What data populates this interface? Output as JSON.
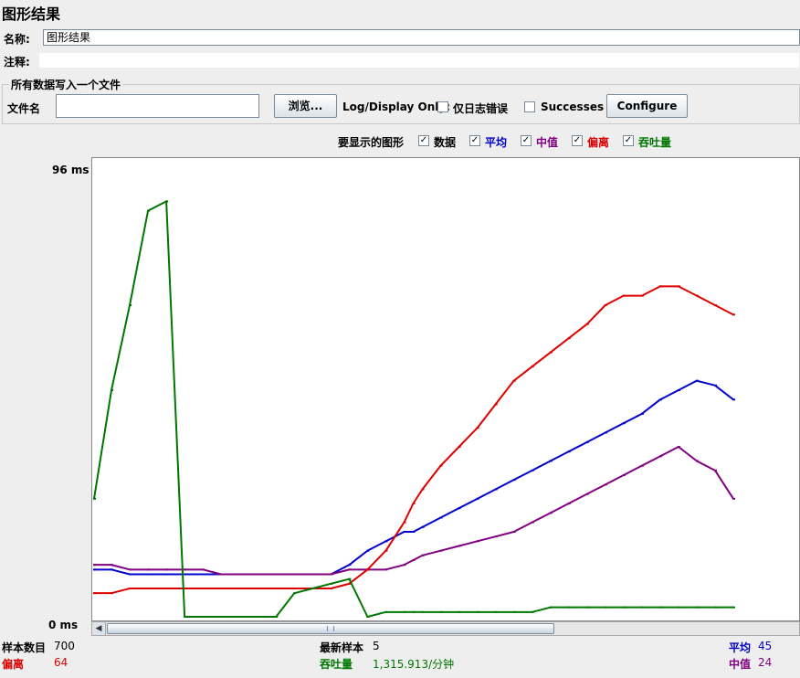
{
  "window": {
    "title": "图形结果"
  },
  "name": {
    "label": "名称:",
    "value": "图形结果"
  },
  "comment": {
    "label": "注释:"
  },
  "file_group": {
    "title": "所有数据写入一个文件",
    "filename_label": "文件名",
    "filename_value": "",
    "browse_label": "浏览...",
    "log_display_label": "Log/Display Only:",
    "errors_only_label": "仅日志错误",
    "successes_label": "Successes",
    "configure_label": "Configure"
  },
  "graph_options": {
    "label": "要显示的图形",
    "items": [
      {
        "label": "数据",
        "color": "#000000",
        "checked": true
      },
      {
        "label": "平均",
        "color": "#0000cc",
        "checked": true
      },
      {
        "label": "中值",
        "color": "#800080",
        "checked": true
      },
      {
        "label": "偏离",
        "color": "#dd0000",
        "checked": true
      },
      {
        "label": "吞吐量",
        "color": "#007700",
        "checked": true
      }
    ]
  },
  "chart_data": {
    "type": "line",
    "ylabel_top": "96 ms",
    "ylabel_bottom": "0 ms",
    "ylim": [
      0,
      96
    ],
    "x": [
      1,
      20,
      40,
      60,
      80,
      100,
      120,
      140,
      160,
      180,
      200,
      220,
      240,
      260,
      280,
      300,
      320,
      340,
      350,
      360,
      380,
      400,
      420,
      440,
      460,
      480,
      500,
      520,
      540,
      560,
      580,
      600,
      620,
      640,
      660,
      680,
      700
    ],
    "series": [
      {
        "name": "平均",
        "color": "#0000cc",
        "values": [
          10,
          10,
          9,
          9,
          9,
          9,
          9,
          9,
          9,
          9,
          9,
          9,
          9,
          9,
          11,
          14,
          16,
          18,
          18,
          19,
          21,
          23,
          25,
          27,
          29,
          31,
          33,
          35,
          37,
          39,
          41,
          43,
          46,
          48,
          50,
          49,
          46
        ]
      },
      {
        "name": "中值",
        "color": "#800080",
        "values": [
          11,
          11,
          10,
          10,
          10,
          10,
          10,
          9,
          9,
          9,
          9,
          9,
          9,
          9,
          10,
          10,
          10,
          11,
          12,
          13,
          14,
          15,
          16,
          17,
          18,
          20,
          22,
          24,
          26,
          28,
          30,
          32,
          34,
          36,
          33,
          31,
          25
        ]
      },
      {
        "name": "偏离",
        "color": "#dd0000",
        "values": [
          5,
          5,
          6,
          6,
          6,
          6,
          6,
          6,
          6,
          6,
          6,
          6,
          6,
          6,
          7,
          10,
          14,
          20,
          24,
          27,
          32,
          36,
          40,
          45,
          50,
          53,
          56,
          59,
          62,
          66,
          68,
          68,
          70,
          70,
          68,
          66,
          64
        ]
      },
      {
        "name": "吞吐量",
        "color": "#007700",
        "values": [
          25,
          48,
          66,
          86,
          88,
          0,
          0,
          0,
          0,
          0,
          0,
          5,
          6,
          7,
          8,
          0,
          1,
          1,
          1,
          1,
          1,
          1,
          1,
          1,
          1,
          1,
          2,
          2,
          2,
          2,
          2,
          2,
          2,
          2,
          2,
          2,
          2
        ]
      }
    ]
  },
  "stats": {
    "samples_label": "样本数目",
    "samples_value": "700",
    "latest_label": "最新样本",
    "latest_value": "5",
    "average_label": "平均",
    "average_value": "45",
    "deviation_label": "偏离",
    "deviation_value": "64",
    "throughput_label": "吞吐量",
    "throughput_value": "1,315.913/分钟",
    "median_label": "中值",
    "median_value": "24"
  },
  "colors": {
    "average": "#0000cc",
    "median": "#800080",
    "deviation": "#dd0000",
    "throughput": "#007700",
    "data": "#000000"
  }
}
